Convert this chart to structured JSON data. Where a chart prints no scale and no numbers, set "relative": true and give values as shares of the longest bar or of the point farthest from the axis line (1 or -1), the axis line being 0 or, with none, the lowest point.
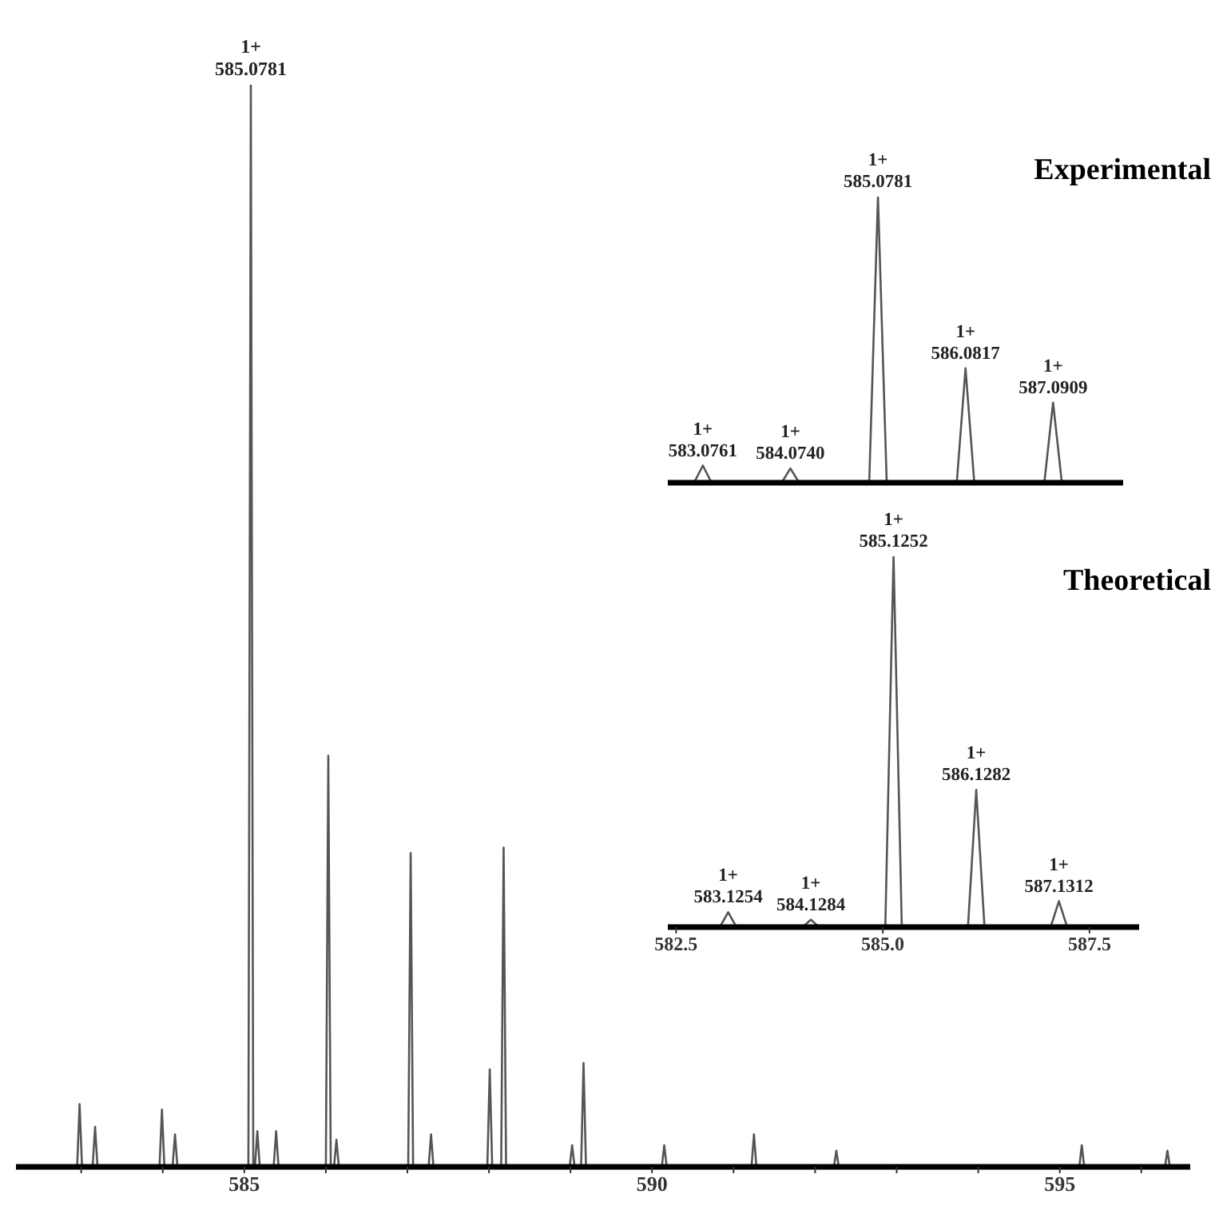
{
  "chart_data": [
    {
      "type": "line",
      "relative": true,
      "color": "#555555",
      "tick_labels": "x",
      "xlim": [
        582.2,
        596.6
      ],
      "xticks": [
        {
          "value": 583,
          "label": null
        },
        {
          "value": 584,
          "label": null
        },
        585,
        {
          "value": 586,
          "label": null
        },
        {
          "value": 587,
          "label": null
        },
        {
          "value": 588,
          "label": null
        },
        {
          "value": 589,
          "label": null
        },
        590,
        {
          "value": 591,
          "label": null
        },
        {
          "value": 592,
          "label": null
        },
        {
          "value": 593,
          "label": null
        },
        {
          "value": 594,
          "label": null
        },
        595,
        {
          "value": 596,
          "label": null
        }
      ],
      "x": [
        582.2,
        582.95,
        582.98,
        583.01,
        583.14,
        583.17,
        583.2,
        583.96,
        583.99,
        584.02,
        584.12,
        584.15,
        584.18,
        585.05,
        585.08,
        585.11,
        585.13,
        585.16,
        585.19,
        585.36,
        585.39,
        585.42,
        586.0,
        586.03,
        586.06,
        586.1,
        586.13,
        586.16,
        587.01,
        587.04,
        587.07,
        587.26,
        587.29,
        587.32,
        587.98,
        588.01,
        588.04,
        588.15,
        588.18,
        588.21,
        588.99,
        589.02,
        589.05,
        589.13,
        589.16,
        589.19,
        590.12,
        590.15,
        590.18,
        591.22,
        591.25,
        591.28,
        592.23,
        592.26,
        592.29,
        595.24,
        595.27,
        595.3,
        596.29,
        596.32,
        596.35,
        596.6
      ],
      "values": [
        0,
        0,
        0.058,
        0,
        0,
        0.037,
        0,
        0,
        0.053,
        0,
        0,
        0.03,
        0,
        0,
        1,
        0,
        0,
        0.033,
        0,
        0,
        0.033,
        0,
        0,
        0.38,
        0,
        0,
        0.025,
        0,
        0,
        0.29,
        0,
        0,
        0.03,
        0,
        0,
        0.09,
        0,
        0,
        0.295,
        0,
        0,
        0.02,
        0,
        0,
        0.096,
        0,
        0,
        0.02,
        0,
        0,
        0.03,
        0,
        0,
        0.015,
        0,
        0,
        0.02,
        0,
        0,
        0.015,
        0,
        0
      ],
      "annotations": [
        {
          "text": "1+\n585.0781",
          "x": 585.08,
          "y": 1
        }
      ]
    },
    {
      "type": "line",
      "title": "Experimental",
      "relative": true,
      "color": "#555555",
      "tick_labels": false,
      "categories": [
        null,
        null,
        null,
        null,
        null,
        null,
        null,
        null,
        null,
        null,
        null,
        null,
        null,
        null,
        null,
        null,
        null,
        null,
        null,
        null,
        null,
        null,
        null,
        null,
        null,
        null,
        null,
        null,
        null,
        null,
        null,
        null,
        null,
        null,
        null,
        null,
        null,
        null,
        null,
        null,
        null,
        null,
        null,
        null,
        null,
        null,
        null,
        null,
        null,
        null,
        null,
        null,
        null
      ],
      "values": [
        0,
        0,
        0,
        0,
        0.06,
        0,
        0,
        0,
        0,
        0,
        0,
        0,
        0,
        0,
        0.05,
        0,
        0,
        0,
        0,
        0,
        0,
        0,
        0,
        0,
        1,
        0,
        0,
        0,
        0,
        0,
        0,
        0,
        0,
        0,
        0.4,
        0,
        0,
        0,
        0,
        0,
        0,
        0,
        0,
        0,
        0.28,
        0,
        0,
        0,
        0,
        0,
        0,
        0,
        0
      ],
      "annotations": [
        "1+\n583.0761",
        "1+\n584.0740",
        "1+\n585.0781",
        "1+\n586.0817",
        "1+\n587.0909"
      ]
    },
    {
      "type": "line",
      "title": "Theoretical",
      "relative": true,
      "color": "#555555",
      "tick_labels": "x",
      "xlim": [
        582.4,
        588.1
      ],
      "xticks": [
        582.5,
        {
          "value": 585,
          "label": "585.0"
        },
        587.5
      ],
      "x": [
        582.4,
        583.03,
        583.13,
        583.23,
        584.03,
        584.13,
        584.23,
        585.03,
        585.13,
        585.23,
        586.03,
        586.13,
        586.23,
        587.03,
        587.13,
        587.23,
        588.1
      ],
      "values": [
        0,
        0,
        0.04,
        0,
        0,
        0.02,
        0,
        0,
        1,
        0,
        0,
        0.37,
        0,
        0,
        0.07,
        0,
        0
      ],
      "annotations": [
        {
          "text": "1+\n583.1254",
          "x": 583.13,
          "y": 0.04
        },
        {
          "text": "1+\n584.1284",
          "x": 584.13,
          "y": 0.02
        },
        {
          "text": "1+\n585.1252",
          "x": 585.13,
          "y": 1
        },
        {
          "text": "1+\n586.1282",
          "x": 586.13,
          "y": 0.37
        },
        {
          "text": "1+\n587.1312",
          "x": 587.13,
          "y": 0.07
        }
      ]
    }
  ]
}
